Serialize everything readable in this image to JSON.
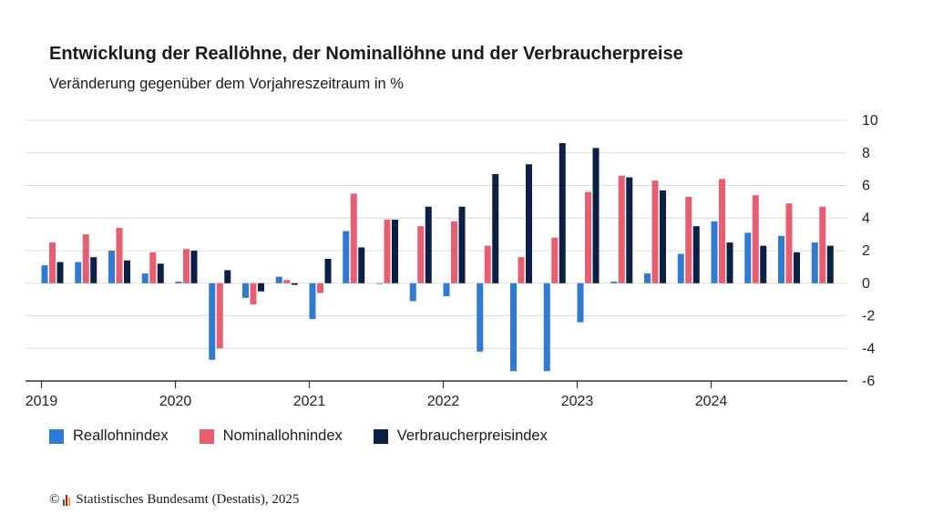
{
  "title": "Entwicklung der Reallöhne, der Nominallöhne und der Verbraucherpreise",
  "subtitle": "Veränderung gegenüber dem Vorjahreszeitraum in %",
  "source": {
    "copyright_symbol": "©",
    "text": "Statistisches Bundesamt (Destatis), 2025"
  },
  "colors": {
    "real": "#2f7ad3",
    "nominal": "#e85d6f",
    "cpi": "#0c1f45",
    "grid": "#dcdcdc",
    "axis": "#333333"
  },
  "chart_data": {
    "type": "bar",
    "categories": [
      "2019 Q1",
      "2019 Q2",
      "2019 Q3",
      "2019 Q4",
      "2020 Q1",
      "2020 Q2",
      "2020 Q3",
      "2020 Q4",
      "2021 Q1",
      "2021 Q2",
      "2021 Q3",
      "2021 Q4",
      "2022 Q1",
      "2022 Q2",
      "2022 Q3",
      "2022 Q4",
      "2023 Q1",
      "2023 Q2",
      "2023 Q3",
      "2023 Q4",
      "2024 Q1",
      "2024 Q2",
      "2024 Q3",
      "2024 Q4"
    ],
    "series": [
      {
        "name": "Reallohnindex",
        "color_key": "real",
        "values": [
          1.1,
          1.3,
          2.0,
          0.6,
          0.1,
          -4.7,
          -0.9,
          0.4,
          -2.2,
          3.2,
          0.0,
          -1.1,
          -0.8,
          -4.2,
          -5.4,
          -5.4,
          -2.4,
          0.1,
          0.6,
          1.8,
          3.8,
          3.1,
          2.9,
          2.5
        ]
      },
      {
        "name": "Nominallohnindex",
        "color_key": "nominal",
        "values": [
          2.5,
          3.0,
          3.4,
          1.9,
          2.1,
          -4.0,
          -1.3,
          0.2,
          -0.6,
          5.5,
          3.9,
          3.5,
          3.8,
          2.3,
          1.6,
          2.8,
          5.6,
          6.6,
          6.3,
          5.3,
          6.4,
          5.4,
          4.9,
          4.7
        ]
      },
      {
        "name": "Verbraucherpreisindex",
        "color_key": "cpi",
        "values": [
          1.3,
          1.6,
          1.4,
          1.2,
          2.0,
          0.8,
          -0.5,
          -0.1,
          1.5,
          2.2,
          3.9,
          4.7,
          4.7,
          6.7,
          7.3,
          8.6,
          8.3,
          6.5,
          5.7,
          3.5,
          2.5,
          2.3,
          1.9,
          2.3
        ]
      }
    ],
    "x_tick_labels": [
      "2019",
      "2020",
      "2021",
      "2022",
      "2023",
      "2024"
    ],
    "y_ticks": [
      10,
      8,
      6,
      4,
      2,
      0,
      -2,
      -4,
      -6
    ],
    "ylim": [
      -6,
      10
    ],
    "y_axis_side": "right",
    "grid": true,
    "legend_placement": "bottom-left"
  }
}
